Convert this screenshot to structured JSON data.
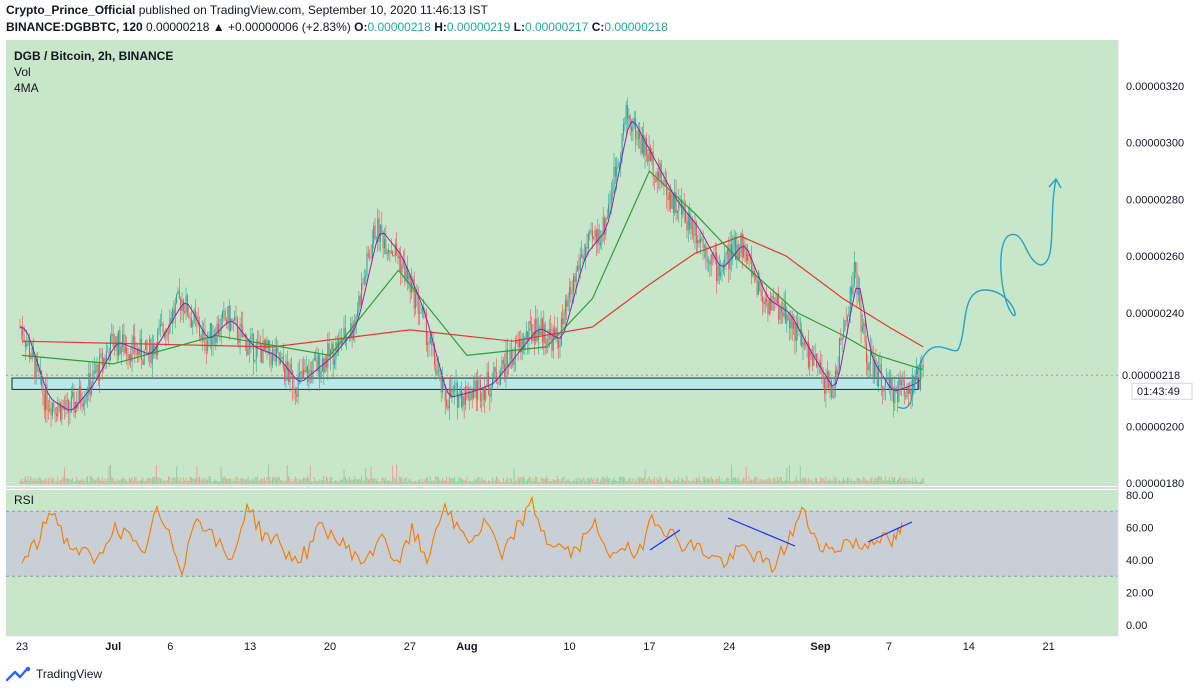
{
  "header": {
    "author": "Crypto_Prince_Official",
    "published_text": " published on TradingView.com, September 10, 2020 11:46:13 IST",
    "symbol": "BINANCE:DGBBTC, 120",
    "last": "0.00000218",
    "change": "▲ +0.00000006 (+2.83%)",
    "o_label": "O:",
    "o": "0.00000218",
    "h_label": "H:",
    "h": "0.00000219",
    "l_label": "L:",
    "l": "0.00000217",
    "c_label": "C:",
    "c": "0.00000218"
  },
  "legend": {
    "title": "DGB / Bitcoin, 2h, BINANCE",
    "line2": "Vol",
    "line3": "4MA"
  },
  "price_axis": {
    "ticks": [
      "0.00000320",
      "0.00000300",
      "0.00000280",
      "0.00000260",
      "0.00000240",
      "0.00000200",
      "0.00000180"
    ],
    "current_price": "0.00000218",
    "countdown": "01:43:49"
  },
  "rsi": {
    "label": "RSI",
    "ticks": [
      "80.00",
      "60.00",
      "40.00",
      "20.00",
      "0.00"
    ],
    "band_upper": 70,
    "band_lower": 30
  },
  "time_axis": {
    "labels": [
      "23",
      "Jul",
      "6",
      "13",
      "20",
      "27",
      "Aug",
      "10",
      "17",
      "24",
      "Sep",
      "7",
      "14",
      "21"
    ]
  },
  "footer": {
    "brand": "TradingView"
  },
  "colors": {
    "background": "#c8e6c9",
    "rsi_band": "#c9cfd6",
    "candle_up": "#26a69a",
    "candle_down": "#ef5350",
    "ma_red": "#e53935",
    "ma_green": "#2e9e3a",
    "ma_purple": "#8e24aa",
    "rsi_line": "#f57c00",
    "projection": "#26a3c5",
    "divergence": "#1a2fff"
  },
  "chart_data": {
    "type": "candlestick",
    "title": "DGB / Bitcoin, 2h, BINANCE",
    "y_range": [
      1.8e-06,
      3.3e-06
    ],
    "x_range": [
      "2020-06-23",
      "2020-09-25"
    ],
    "approx_closes": [
      [
        "2020-06-23",
        2.35e-06
      ],
      [
        "2020-06-25",
        2.1e-06
      ],
      [
        "2020-06-27",
        2.05e-06
      ],
      [
        "2020-06-29",
        2.15e-06
      ],
      [
        "2020-07-01",
        2.3e-06
      ],
      [
        "2020-07-04",
        2.25e-06
      ],
      [
        "2020-07-07",
        2.45e-06
      ],
      [
        "2020-07-09",
        2.3e-06
      ],
      [
        "2020-07-11",
        2.38e-06
      ],
      [
        "2020-07-13",
        2.28e-06
      ],
      [
        "2020-07-15",
        2.25e-06
      ],
      [
        "2020-07-17",
        2.15e-06
      ],
      [
        "2020-07-20",
        2.25e-06
      ],
      [
        "2020-07-22",
        2.35e-06
      ],
      [
        "2020-07-24",
        2.7e-06
      ],
      [
        "2020-07-26",
        2.6e-06
      ],
      [
        "2020-07-28",
        2.4e-06
      ],
      [
        "2020-07-30",
        2.1e-06
      ],
      [
        "2020-08-01",
        2.12e-06
      ],
      [
        "2020-08-03",
        2.15e-06
      ],
      [
        "2020-08-05",
        2.25e-06
      ],
      [
        "2020-08-07",
        2.35e-06
      ],
      [
        "2020-08-09",
        2.3e-06
      ],
      [
        "2020-08-11",
        2.6e-06
      ],
      [
        "2020-08-13",
        2.7e-06
      ],
      [
        "2020-08-15",
        3.1e-06
      ],
      [
        "2020-08-17",
        2.95e-06
      ],
      [
        "2020-08-19",
        2.8e-06
      ],
      [
        "2020-08-21",
        2.7e-06
      ],
      [
        "2020-08-23",
        2.55e-06
      ],
      [
        "2020-08-25",
        2.65e-06
      ],
      [
        "2020-08-27",
        2.45e-06
      ],
      [
        "2020-08-29",
        2.4e-06
      ],
      [
        "2020-08-31",
        2.25e-06
      ],
      [
        "2020-09-02",
        2.12e-06
      ],
      [
        "2020-09-04",
        2.55e-06
      ],
      [
        "2020-09-05",
        2.25e-06
      ],
      [
        "2020-09-07",
        2.12e-06
      ],
      [
        "2020-09-09",
        2.15e-06
      ],
      [
        "2020-09-10",
        2.18e-06
      ]
    ],
    "ma_slow": [
      [
        "2020-06-23",
        2.3e-06
      ],
      [
        "2020-07-15",
        2.28e-06
      ],
      [
        "2020-07-27",
        2.34e-06
      ],
      [
        "2020-08-05",
        2.3e-06
      ],
      [
        "2020-08-12",
        2.35e-06
      ],
      [
        "2020-08-17",
        2.5e-06
      ],
      [
        "2020-08-21",
        2.61e-06
      ],
      [
        "2020-08-25",
        2.67e-06
      ],
      [
        "2020-08-29",
        2.6e-06
      ],
      [
        "2020-09-03",
        2.45e-06
      ],
      [
        "2020-09-07",
        2.35e-06
      ],
      [
        "2020-09-10",
        2.28e-06
      ]
    ],
    "ma_mid": [
      [
        "2020-06-23",
        2.25e-06
      ],
      [
        "2020-07-01",
        2.22e-06
      ],
      [
        "2020-07-10",
        2.32e-06
      ],
      [
        "2020-07-20",
        2.25e-06
      ],
      [
        "2020-07-26",
        2.55e-06
      ],
      [
        "2020-08-01",
        2.25e-06
      ],
      [
        "2020-08-08",
        2.28e-06
      ],
      [
        "2020-08-12",
        2.45e-06
      ],
      [
        "2020-08-17",
        2.9e-06
      ],
      [
        "2020-08-21",
        2.75e-06
      ],
      [
        "2020-08-25",
        2.58e-06
      ],
      [
        "2020-08-30",
        2.4e-06
      ],
      [
        "2020-09-03",
        2.32e-06
      ],
      [
        "2020-09-06",
        2.25e-06
      ],
      [
        "2020-09-10",
        2.2e-06
      ]
    ],
    "rsi_approx": [
      [
        0,
        38
      ],
      [
        15,
        50
      ],
      [
        30,
        72
      ],
      [
        45,
        50
      ],
      [
        60,
        45
      ],
      [
        75,
        38
      ],
      [
        90,
        60
      ],
      [
        105,
        55
      ],
      [
        120,
        42
      ],
      [
        135,
        70
      ],
      [
        150,
        50
      ],
      [
        160,
        35
      ],
      [
        175,
        68
      ],
      [
        190,
        55
      ],
      [
        210,
        38
      ],
      [
        225,
        75
      ],
      [
        240,
        56
      ],
      [
        255,
        52
      ],
      [
        270,
        40
      ],
      [
        285,
        45
      ],
      [
        300,
        62
      ],
      [
        315,
        52
      ],
      [
        330,
        45
      ],
      [
        345,
        38
      ],
      [
        360,
        58
      ],
      [
        375,
        35
      ],
      [
        390,
        58
      ],
      [
        405,
        40
      ],
      [
        420,
        72
      ],
      [
        435,
        60
      ],
      [
        450,
        52
      ],
      [
        465,
        64
      ],
      [
        480,
        40
      ],
      [
        495,
        60
      ],
      [
        510,
        74
      ],
      [
        525,
        52
      ],
      [
        540,
        47
      ],
      [
        555,
        44
      ],
      [
        570,
        65
      ],
      [
        585,
        42
      ],
      [
        600,
        50
      ],
      [
        615,
        40
      ],
      [
        630,
        68
      ],
      [
        645,
        58
      ],
      [
        660,
        50
      ],
      [
        675,
        48
      ],
      [
        690,
        42
      ],
      [
        705,
        38
      ],
      [
        720,
        48
      ],
      [
        735,
        42
      ],
      [
        750,
        35
      ],
      [
        765,
        50
      ],
      [
        780,
        70
      ],
      [
        795,
        52
      ],
      [
        810,
        45
      ],
      [
        825,
        52
      ],
      [
        840,
        48
      ],
      [
        855,
        55
      ],
      [
        870,
        50
      ],
      [
        880,
        60
      ]
    ],
    "support_zone": [
      2.13e-06,
      2.17e-06
    ]
  }
}
